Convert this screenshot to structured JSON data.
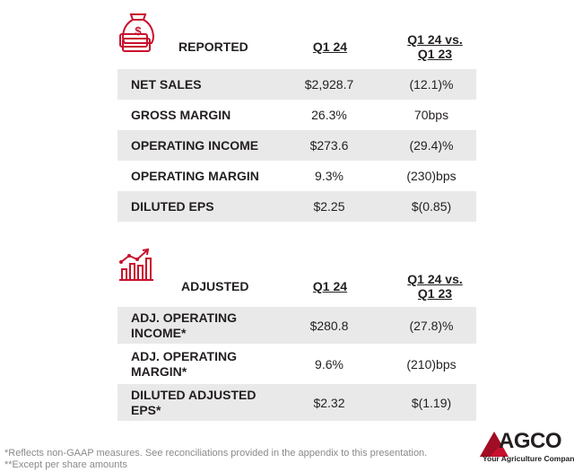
{
  "reported": {
    "icon": "money-bag-icon",
    "heading": "REPORTED",
    "col1": "Q1 24",
    "col2_line1": "Q1 24 vs.",
    "col2_line2": "Q1 23",
    "rows": [
      {
        "label": "NET SALES",
        "v1": "$2,928.7",
        "v2": "(12.1)%"
      },
      {
        "label": "GROSS MARGIN",
        "v1": "26.3%",
        "v2": "70bps"
      },
      {
        "label": "OPERATING INCOME",
        "v1": "$273.6",
        "v2": "(29.4)%"
      },
      {
        "label": "OPERATING MARGIN",
        "v1": "9.3%",
        "v2": "(230)bps"
      },
      {
        "label": "DILUTED EPS",
        "v1": "$2.25",
        "v2": "$(0.85)"
      }
    ]
  },
  "adjusted": {
    "icon": "bar-chart-trend-icon",
    "heading": "ADJUSTED",
    "col1": "Q1 24",
    "col2_line1": "Q1 24 vs.",
    "col2_line2": "Q1 23",
    "rows": [
      {
        "label_line1": "ADJ. OPERATING",
        "label_line2": "INCOME*",
        "v1": "$280.8",
        "v2": "(27.8)%"
      },
      {
        "label_line1": "ADJ. OPERATING",
        "label_line2": "MARGIN*",
        "v1": "9.6%",
        "v2": "(210)bps"
      },
      {
        "label_line1": "DILUTED ADJUSTED",
        "label_line2": "EPS*",
        "v1": "$2.32",
        "v2": "$(1.19)"
      }
    ]
  },
  "footnotes": {
    "line1": "*Reflects non-GAAP measures. See reconciliations provided in the appendix to this presentation.",
    "line2": "**Except per share amounts"
  },
  "logo": {
    "name": "AGCO",
    "tagline": "Your Agriculture Company",
    "color": "#c8102e"
  },
  "colors": {
    "accent": "#c8102e",
    "row_shade": "#e9e9ea"
  }
}
